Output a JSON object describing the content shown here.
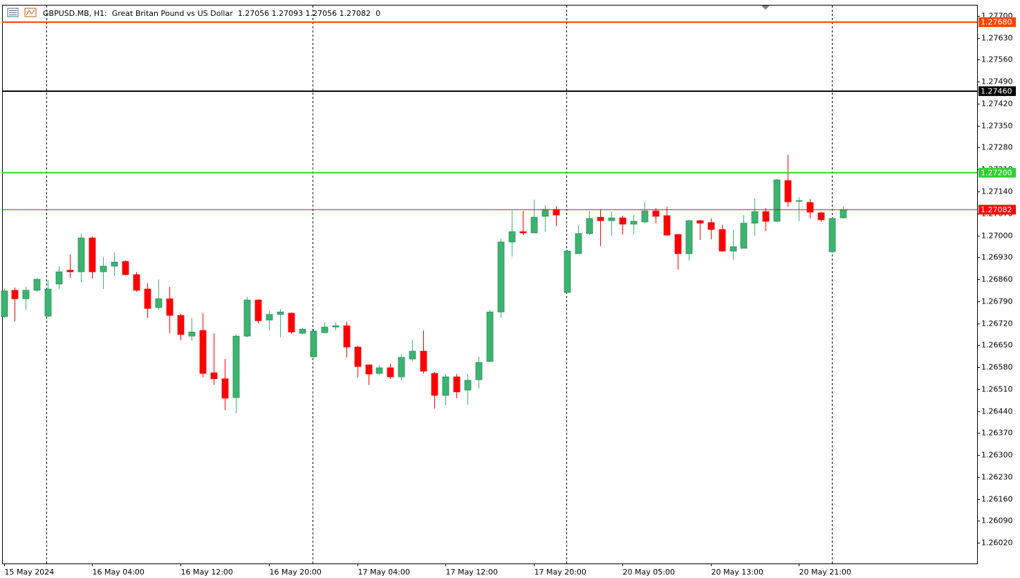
{
  "chart_data": {
    "type": "candlestick",
    "title": "GBPUSD.MB, H1:  Great Britan Pound vs US Dollar  1.27056 1.27093 1.27056 1.27082  0",
    "categories": [
      "15 May 2024",
      null,
      null,
      null,
      null,
      null,
      null,
      null,
      "16 May 04:00",
      null,
      null,
      null,
      null,
      null,
      null,
      null,
      "16 May 12:00",
      null,
      null,
      null,
      null,
      null,
      null,
      null,
      "16 May 20:00",
      null,
      null,
      null,
      null,
      null,
      null,
      null,
      "17 May 04:00",
      null,
      null,
      null,
      null,
      null,
      null,
      null,
      "17 May 12:00",
      null,
      null,
      null,
      null,
      null,
      null,
      null,
      "17 May 20:00",
      null,
      null,
      null,
      null,
      null,
      null,
      null,
      "20 May 05:00",
      null,
      null,
      null,
      null,
      null,
      null,
      null,
      "20 May 13:00",
      null,
      null,
      null,
      null,
      null,
      null,
      null,
      "20 May 21:00",
      null,
      null,
      null,
      null
    ],
    "open": [
      1.26741,
      1.26825,
      1.26798,
      1.26825,
      1.26743,
      1.26845,
      1.26889,
      1.26884,
      1.26992,
      1.26884,
      1.26902,
      1.26917,
      1.26875,
      1.26829,
      1.2677,
      1.26798,
      1.26745,
      1.26679,
      1.26697,
      1.26562,
      1.26543,
      1.26483,
      1.26679,
      1.26794,
      1.2673,
      1.26748,
      1.26752,
      1.26688,
      1.26613,
      1.2669,
      1.26708,
      1.26712,
      1.26644,
      1.26587,
      1.2656,
      1.26578,
      1.26549,
      1.26606,
      1.26631,
      1.2656,
      1.2649,
      1.26549,
      1.26507,
      1.2654,
      1.26598,
      1.26756,
      1.26979,
      1.27012,
      1.27008,
      1.27061,
      1.27083,
      1.26818,
      1.26942,
      1.27006,
      1.27058,
      1.27047,
      1.27056,
      1.27036,
      1.27043,
      1.27078,
      1.27063,
      1.27003,
      1.26942,
      1.27047,
      1.27041,
      1.27019,
      1.2695,
      1.26959,
      1.27039,
      1.27076,
      1.27045,
      1.27175,
      1.27109,
      1.27105,
      1.27072,
      1.26948,
      1.27056
    ],
    "high": [
      1.26831,
      1.26834,
      1.26836,
      1.26864,
      1.26858,
      1.26902,
      1.26939,
      1.27006,
      1.26997,
      1.26931,
      1.26946,
      1.2692,
      1.26884,
      1.26847,
      1.2686,
      1.26836,
      1.2675,
      1.26737,
      1.26752,
      1.26688,
      1.26606,
      1.26684,
      1.26803,
      1.26796,
      1.26759,
      1.26765,
      1.26754,
      1.26706,
      1.26701,
      1.26723,
      1.26723,
      1.26726,
      1.26648,
      1.26589,
      1.26587,
      1.26591,
      1.26622,
      1.26666,
      1.26697,
      1.26565,
      1.26558,
      1.26558,
      1.26558,
      1.26613,
      1.26763,
      1.2699,
      1.2708,
      1.27078,
      1.27114,
      1.27096,
      1.27093,
      1.26955,
      1.27032,
      1.27078,
      1.27083,
      1.27076,
      1.27063,
      1.27065,
      1.27107,
      1.27087,
      1.27091,
      1.27003,
      1.2705,
      1.2705,
      1.27054,
      1.27034,
      1.27017,
      1.27065,
      1.27118,
      1.27087,
      1.2718,
      1.27257,
      1.27122,
      1.27116,
      1.27076,
      1.27054,
      1.27093
    ],
    "low": [
      1.26737,
      1.26726,
      1.26763,
      1.2682,
      1.26739,
      1.26829,
      1.26864,
      1.26851,
      1.26862,
      1.26829,
      1.26871,
      1.26873,
      1.2682,
      1.26737,
      1.26763,
      1.26688,
      1.26666,
      1.26664,
      1.26547,
      1.26523,
      1.26443,
      1.26432,
      1.26675,
      1.26719,
      1.26697,
      1.26675,
      1.26686,
      1.26684,
      1.26609,
      1.26688,
      1.26697,
      1.26611,
      1.26547,
      1.26523,
      1.26556,
      1.26543,
      1.26538,
      1.266,
      1.2656,
      1.26448,
      1.26459,
      1.26481,
      1.26459,
      1.26512,
      1.26598,
      1.26737,
      1.26933,
      1.27001,
      1.27008,
      1.27012,
      1.2703,
      1.26818,
      1.26942,
      1.27001,
      1.26966,
      1.26999,
      1.27003,
      1.27003,
      1.27039,
      1.27039,
      1.26999,
      1.26891,
      1.2692,
      1.26986,
      1.26988,
      1.26948,
      1.26922,
      1.26959,
      1.26999,
      1.27014,
      1.27043,
      1.27091,
      1.27045,
      1.27054,
      1.27043,
      1.26944,
      1.27056
    ],
    "close": [
      1.26823,
      1.26798,
      1.26825,
      1.2686,
      1.26829,
      1.26884,
      1.26884,
      1.26992,
      1.26884,
      1.26902,
      1.26915,
      1.26875,
      1.26825,
      1.26767,
      1.26798,
      1.26745,
      1.26684,
      1.26692,
      1.2656,
      1.26543,
      1.26481,
      1.26679,
      1.26794,
      1.26728,
      1.26748,
      1.26756,
      1.26692,
      1.26701,
      1.26695,
      1.26708,
      1.26712,
      1.26644,
      1.26582,
      1.26558,
      1.26578,
      1.26549,
      1.26611,
      1.26631,
      1.26567,
      1.2649,
      1.26549,
      1.26501,
      1.26538,
      1.26595,
      1.26756,
      1.26979,
      1.27012,
      1.27008,
      1.27058,
      1.27083,
      1.27065,
      1.2695,
      1.27006,
      1.27054,
      1.27047,
      1.27056,
      1.27036,
      1.27045,
      1.27078,
      1.27061,
      1.27001,
      1.26942,
      1.27047,
      1.27039,
      1.27019,
      1.2695,
      1.26964,
      1.27039,
      1.27076,
      1.27045,
      1.27177,
      1.27107,
      1.27111,
      1.27074,
      1.2705,
      1.27054,
      1.27082
    ],
    "up_color": "#3cb371",
    "down_color": "#ff0000",
    "ylim": [
      1.25954,
      1.27733
    ],
    "yticks": [
      {
        "value": 1.277,
        "label": "1.27700"
      },
      {
        "value": 1.2763,
        "label": "1.27630"
      },
      {
        "value": 1.2756,
        "label": "1.27560"
      },
      {
        "value": 1.2749,
        "label": "1.27490"
      },
      {
        "value": 1.2742,
        "label": "1.27420"
      },
      {
        "value": 1.2735,
        "label": "1.27350"
      },
      {
        "value": 1.2728,
        "label": "1.27280"
      },
      {
        "value": 1.2721,
        "label": "1.27210"
      },
      {
        "value": 1.2714,
        "label": "1.27140"
      },
      {
        "value": 1.2707,
        "label": "1.27070"
      },
      {
        "value": 1.27,
        "label": "1.27000"
      },
      {
        "value": 1.2693,
        "label": "1.26930"
      },
      {
        "value": 1.2686,
        "label": "1.26860"
      },
      {
        "value": 1.2679,
        "label": "1.26790"
      },
      {
        "value": 1.2672,
        "label": "1.26720"
      },
      {
        "value": 1.2665,
        "label": "1.26650"
      },
      {
        "value": 1.2658,
        "label": "1.26580"
      },
      {
        "value": 1.2651,
        "label": "1.26510"
      },
      {
        "value": 1.2644,
        "label": "1.26440"
      },
      {
        "value": 1.2637,
        "label": "1.26370"
      },
      {
        "value": 1.263,
        "label": "1.26300"
      },
      {
        "value": 1.2623,
        "label": "1.26230"
      },
      {
        "value": 1.2616,
        "label": "1.26160"
      },
      {
        "value": 1.2609,
        "label": "1.26090"
      },
      {
        "value": 1.2602,
        "label": "1.26020"
      }
    ],
    "price_lines": [
      {
        "value": 1.2768,
        "label": "1.27680",
        "color": "#ff4500"
      },
      {
        "value": 1.2746,
        "label": "1.27460",
        "color": "#000000"
      },
      {
        "value": 1.272,
        "label": "1.27200",
        "color": "#32cd32"
      },
      {
        "value": 1.27082,
        "label": "1.27082",
        "color": "#ff0000"
      }
    ],
    "grid": false
  }
}
